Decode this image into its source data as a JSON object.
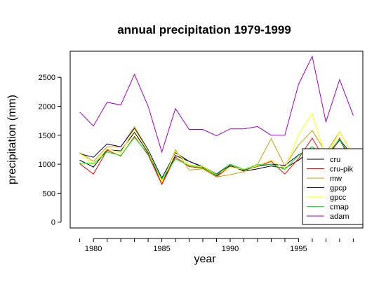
{
  "chart_data": {
    "type": "line",
    "title": "annual precipitation 1979-1999",
    "xlabel": "year",
    "ylabel": "precipitation (mm)",
    "x": [
      1979,
      1980,
      1981,
      1982,
      1983,
      1984,
      1985,
      1986,
      1987,
      1988,
      1989,
      1990,
      1991,
      1992,
      1993,
      1994,
      1995,
      1996,
      1997,
      1998,
      1999
    ],
    "xlim": [
      1978.3,
      1999.7
    ],
    "ylim": [
      -100,
      2950
    ],
    "xticks": [
      "1980",
      "1985",
      "1990",
      "1995"
    ],
    "yticks": [
      "0",
      "500",
      "1000",
      "1500",
      "2000",
      "2500"
    ],
    "grid": false,
    "legend_position": "bottom-right",
    "series": [
      {
        "name": "cru",
        "color": "#000000",
        "values": [
          1070,
          950,
          1250,
          1230,
          1550,
          1200,
          680,
          1150,
          1050,
          950,
          800,
          980,
          880,
          920,
          970,
          930,
          1070,
          1250,
          1100,
          1420,
          1030
        ]
      },
      {
        "name": "cru-pik",
        "color": "#ff0000",
        "values": [
          1010,
          830,
          1240,
          1140,
          1480,
          1160,
          650,
          1120,
          960,
          930,
          780,
          960,
          900,
          960,
          1050,
          830,
          1100,
          1450,
          1040,
          1450,
          930
        ]
      },
      {
        "name": "mw",
        "color": "#c8a000",
        "values": [
          1200,
          1050,
          1300,
          1300,
          1650,
          1250,
          680,
          1250,
          900,
          920,
          780,
          820,
          870,
          1000,
          1440,
          970,
          1330,
          1580,
          1200,
          1560,
          1150
        ]
      },
      {
        "name": "gpcp",
        "color": "#000080",
        "values": [
          1180,
          1120,
          1350,
          1300,
          1620,
          1250,
          760,
          1200,
          1050,
          960,
          830,
          1000,
          900,
          970,
          1000,
          980,
          1160,
          1300,
          1140,
          1430,
          1130
        ]
      },
      {
        "name": "gpcc",
        "color": "#ffff00",
        "values": [
          1190,
          1000,
          1260,
          1200,
          1600,
          1230,
          690,
          1220,
          990,
          960,
          820,
          950,
          910,
          970,
          1070,
          930,
          1500,
          1870,
          1120,
          1560,
          1140
        ]
      },
      {
        "name": "cmap",
        "color": "#00ff00",
        "values": [
          1020,
          1010,
          1210,
          1150,
          1460,
          1180,
          740,
          1090,
          980,
          940,
          810,
          1000,
          910,
          990,
          1000,
          910,
          1150,
          1300,
          1130,
          1430,
          1050
        ]
      },
      {
        "name": "adam",
        "color": "#a000c8",
        "values": [
          1900,
          1660,
          2070,
          2020,
          2550,
          2000,
          1210,
          1960,
          1600,
          1600,
          1490,
          1610,
          1610,
          1650,
          1500,
          1500,
          2380,
          2860,
          1730,
          2460,
          1840
        ]
      }
    ]
  }
}
